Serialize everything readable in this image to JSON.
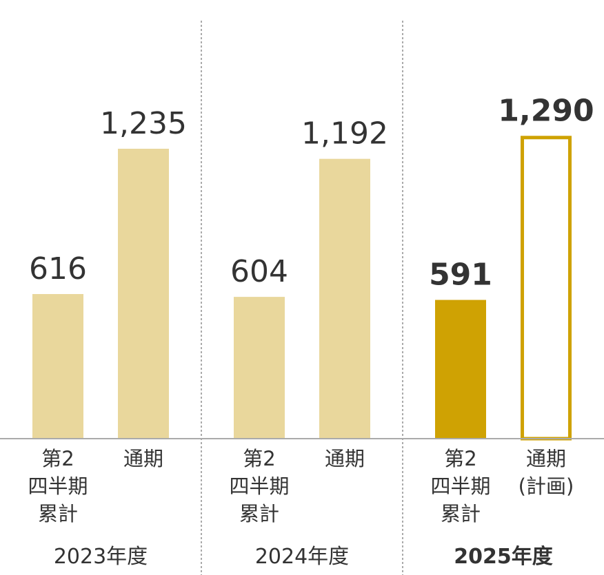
{
  "chart_data": {
    "type": "bar",
    "ylim": [
      0,
      1380
    ],
    "groups": [
      {
        "year_label": "2023年度",
        "bars": [
          {
            "category_lines": [
              "第2",
              "四半期",
              "累計"
            ],
            "value": 616,
            "value_label": "616",
            "style": "light"
          },
          {
            "category_lines": [
              "通期"
            ],
            "value": 1235,
            "value_label": "1,235",
            "style": "light"
          }
        ]
      },
      {
        "year_label": "2024年度",
        "bars": [
          {
            "category_lines": [
              "第2",
              "四半期",
              "累計"
            ],
            "value": 604,
            "value_label": "604",
            "style": "light"
          },
          {
            "category_lines": [
              "通期"
            ],
            "value": 1192,
            "value_label": "1,192",
            "style": "light"
          }
        ]
      },
      {
        "year_label": "2025年度",
        "bars": [
          {
            "category_lines": [
              "第2",
              "四半期",
              "累計"
            ],
            "value": 591,
            "value_label": "591",
            "style": "dark"
          },
          {
            "category_lines": [
              "通期",
              "(計画)"
            ],
            "value": 1290,
            "value_label": "1,290",
            "style": "outline"
          }
        ]
      }
    ]
  },
  "colors": {
    "light_bar": "#E9D79C",
    "dark_bar": "#CFA203",
    "outline_bar": "#CFA203",
    "baseline": "#AAAAAA",
    "divider": "#555555",
    "text": "#333333"
  }
}
